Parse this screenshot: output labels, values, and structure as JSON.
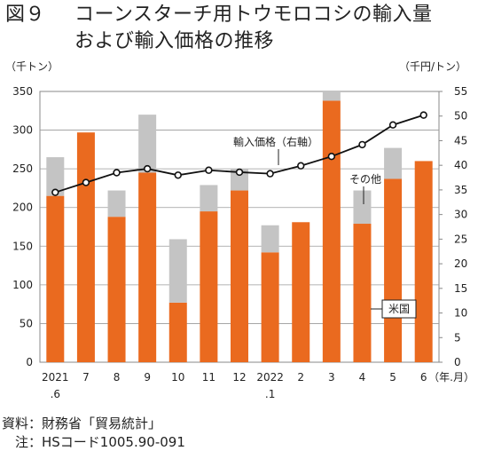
{
  "header": {
    "figure_label": "図９",
    "title_line1": "コーンスターチ用トウモロコシの輸入量",
    "title_line2": "および輸入価格の推移"
  },
  "footer": {
    "source": "資料：財務省「貿易統計」",
    "note": "　注：HSコード1005.90-091"
  },
  "chart_data": {
    "type": "bar",
    "title": "コーンスターチ用トウモロコシの輸入量および輸入価格の推移",
    "left_unit": "（千トン）",
    "right_unit": "（千円/トン）",
    "x_unit": "（年.月）",
    "categories": [
      "2021\n.6",
      "7",
      "8",
      "9",
      "10",
      "11",
      "12",
      "2022\n.1",
      "2",
      "3",
      "4",
      "5",
      "6"
    ],
    "ylim_left": [
      0,
      350
    ],
    "yticks_left": [
      0,
      50,
      100,
      150,
      200,
      250,
      300,
      350
    ],
    "ylim_right": [
      0,
      55
    ],
    "yticks_right": [
      0,
      5,
      10,
      15,
      20,
      25,
      30,
      35,
      40,
      45,
      50,
      55
    ],
    "stacked": true,
    "series": [
      {
        "name": "米国",
        "axis": "left",
        "kind": "bar",
        "color": "#ea6a1f",
        "values": [
          215,
          297,
          188,
          245,
          77,
          195,
          222,
          142,
          181,
          338,
          179,
          237,
          260
        ]
      },
      {
        "name": "その他",
        "axis": "left",
        "kind": "bar",
        "color": "#c4c4c4",
        "values": [
          50,
          0,
          34,
          75,
          82,
          34,
          28,
          35,
          0,
          12,
          43,
          40,
          0
        ]
      },
      {
        "name": "輸入価格（右軸）",
        "axis": "right",
        "kind": "line",
        "color": "#111111",
        "values": [
          34.5,
          36.5,
          38.5,
          39.3,
          38.0,
          39.0,
          38.6,
          38.3,
          39.9,
          41.8,
          44.2,
          48.2,
          50.2
        ]
      }
    ],
    "annotations": {
      "price_label": "輸入価格（右軸）",
      "other_label": "その他",
      "us_label": "米国"
    },
    "grid": "horizontal"
  }
}
